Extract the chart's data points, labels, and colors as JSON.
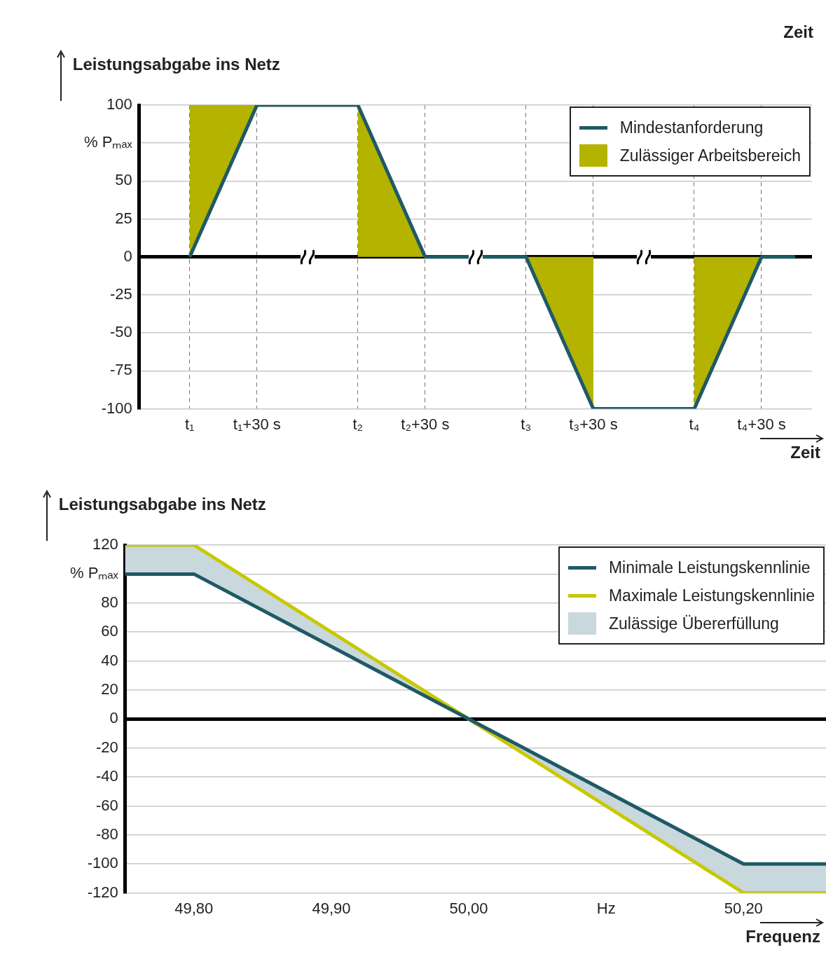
{
  "chart_data": [
    {
      "type": "line",
      "xlabel": "Zeit",
      "ylabel": "Leistungsabgabe ins Netz",
      "annotations": [
        "Zeit"
      ],
      "categories": [
        null,
        "t₁",
        null,
        "t₁+30 s",
        null,
        null,
        "t₂",
        null,
        "t₂+30 s",
        null,
        null,
        "t₃",
        null,
        "t₃+30 s",
        null,
        null,
        "t₄",
        null,
        "t₄+30 s",
        null
      ],
      "ylim": [
        -100,
        100
      ],
      "yticks": [
        -100,
        -75,
        -50,
        -25,
        0,
        25,
        50,
        {
          "value": 75,
          "label": "% Pₘₐₓ"
        },
        100
      ],
      "grid": true,
      "legend": "top right",
      "series": [
        {
          "name": "Mindestanforderung",
          "type": "line",
          "color": "#1f5a66",
          "values": [
            null,
            0,
            50,
            100,
            100,
            100,
            100,
            50,
            0,
            0,
            0,
            0,
            -50,
            -100,
            -100,
            -100,
            -100,
            -50,
            0,
            0
          ]
        },
        {
          "name": "Zulässiger Arbeitsbereich",
          "type": "line",
          "color": "#b3b300",
          "values": [
            null,
            null,
            null,
            null,
            null,
            null,
            null,
            null,
            null,
            null,
            null,
            null,
            null,
            null,
            null,
            null,
            null,
            null,
            null,
            null
          ],
          "upper": [
            null,
            100,
            100,
            100,
            null,
            null,
            100,
            50,
            0,
            null,
            null,
            0,
            0,
            0,
            null,
            null,
            0,
            0,
            0,
            null
          ],
          "lower": [
            null,
            0,
            50,
            100,
            null,
            null,
            0,
            0,
            0,
            null,
            null,
            0,
            -50,
            -100,
            null,
            null,
            -100,
            -50,
            0,
            null
          ]
        }
      ]
    },
    {
      "type": "line",
      "xlabel": "Frequenz",
      "ylabel": "Leistungsabgabe ins Netz",
      "xlim": [
        49.75,
        50.26
      ],
      "xticks": [
        {
          "value": 49.8,
          "label": "49,80"
        },
        {
          "value": 49.9,
          "label": "49,90"
        },
        {
          "value": 50,
          "label": "50,00"
        },
        {
          "value": 50.1,
          "label": "Hz"
        },
        {
          "value": 50.2,
          "label": "50,20"
        }
      ],
      "ylim": [
        -120,
        120
      ],
      "yticks": [
        -120,
        -100,
        -80,
        -60,
        -40,
        -20,
        0,
        20,
        40,
        60,
        80,
        {
          "value": 100,
          "label": "% Pₘₐₓ"
        },
        120
      ],
      "grid": "y",
      "legend": "top right",
      "series": [
        {
          "name": "Minimale Leistungskennlinie",
          "type": "line",
          "color": "#1f5a66",
          "x": [
            49.75,
            49.8,
            50,
            50.2,
            50.26
          ],
          "values": [
            100,
            100,
            0,
            -100,
            -100
          ]
        },
        {
          "name": "Maximale Leistungskennlinie",
          "type": "line",
          "color": "#c8c800",
          "x": [
            49.75,
            49.8,
            50,
            50.2,
            50.26
          ],
          "values": [
            120,
            120,
            0,
            -120,
            -120
          ]
        },
        {
          "name": "Zulässige Übererfüllung",
          "type": "line",
          "color": "#c9d8dc",
          "x": [
            49.75,
            49.8,
            50,
            50.2,
            50.26
          ],
          "values": [
            null,
            null,
            null,
            null,
            null
          ],
          "upper": [
            120,
            120,
            0,
            -100,
            -100
          ],
          "lower": [
            100,
            100,
            0,
            -120,
            -120
          ]
        }
      ]
    }
  ]
}
